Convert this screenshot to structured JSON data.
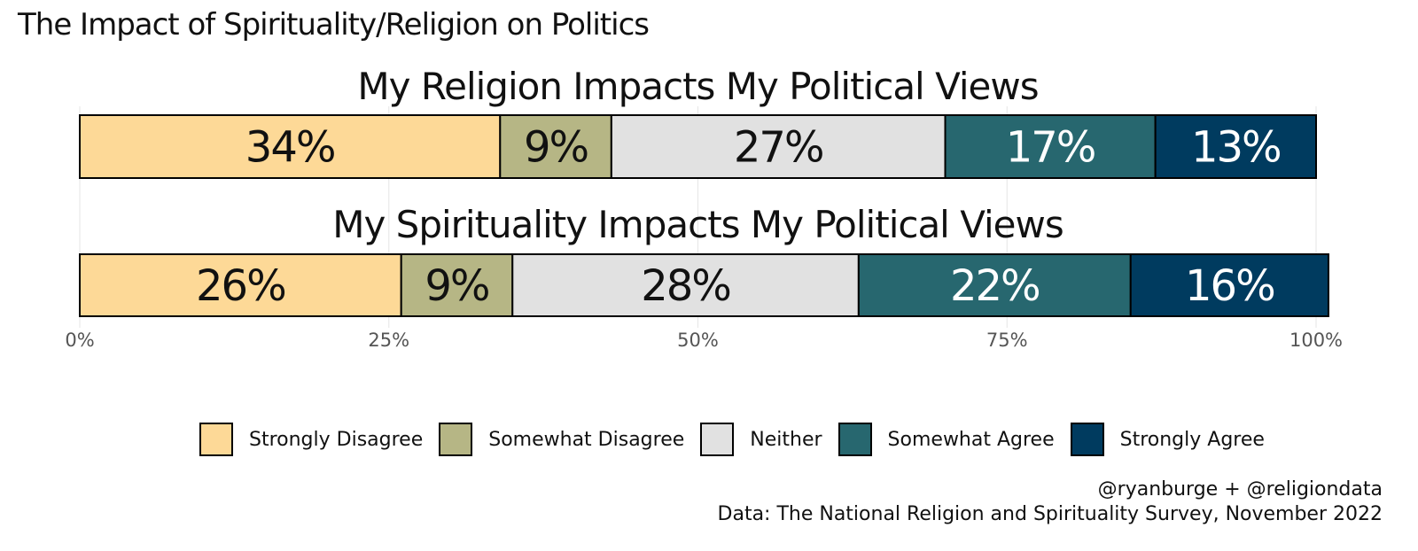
{
  "title": "The Impact of Spirituality/Religion on Politics",
  "chart_data": {
    "type": "bar",
    "orientation": "horizontal",
    "stacked": true,
    "categories": [
      "My Religion Impacts My Political Views",
      "My Spirituality Impacts My Political Views"
    ],
    "series": [
      {
        "name": "Strongly Disagree",
        "color": "#FDD997",
        "values": [
          34,
          26
        ],
        "label_color": "#111111"
      },
      {
        "name": "Somewhat Disagree",
        "color": "#B6B685",
        "values": [
          9,
          9
        ],
        "label_color": "#111111"
      },
      {
        "name": "Neither",
        "color": "#E1E1E1",
        "values": [
          27,
          28
        ],
        "label_color": "#111111"
      },
      {
        "name": "Somewhat Agree",
        "color": "#27676F",
        "values": [
          17,
          22
        ],
        "label_color": "#FFFFFF"
      },
      {
        "name": "Strongly Agree",
        "color": "#003B5F",
        "values": [
          13,
          16
        ],
        "label_color": "#FFFFFF"
      }
    ],
    "data_labels": [
      [
        "34%",
        "9%",
        "27%",
        "17%",
        "13%"
      ],
      [
        "26%",
        "9%",
        "28%",
        "22%",
        "16%"
      ]
    ],
    "xlim": [
      0,
      100
    ],
    "ticks": [
      "0%",
      "25%",
      "50%",
      "75%",
      "100%"
    ],
    "legend_position": "bottom",
    "grid": true
  },
  "credits": {
    "line1": "@ryanburge + @religiondata",
    "line2": "Data: The National Religion and Spirituality Survey, November 2022"
  }
}
